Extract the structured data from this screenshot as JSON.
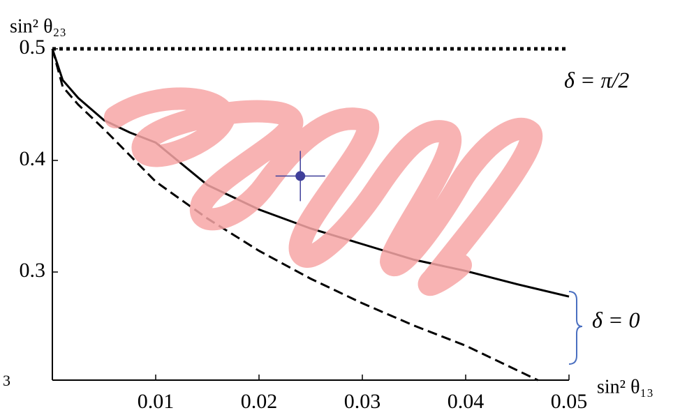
{
  "chart_data": {
    "type": "line",
    "ylabel": "sin² θ₂₃",
    "xlabel": "sin² θ₁₃",
    "xlim": [
      0,
      0.05
    ],
    "ylim": [
      0.2,
      0.5
    ],
    "xticks": [
      0.01,
      0.02,
      0.03,
      0.04,
      0.05
    ],
    "yticks": [
      0.3,
      0.4,
      0.5
    ],
    "series": [
      {
        "style": "dotted",
        "color": "#000000",
        "x": [
          0,
          0.05
        ],
        "values": [
          0.5,
          0.5
        ]
      },
      {
        "style": "solid",
        "color": "#000000",
        "x": [
          0,
          0.001,
          0.0025,
          0.005,
          0.0075,
          0.01,
          0.015,
          0.02,
          0.025,
          0.03,
          0.035,
          0.04,
          0.045,
          0.05
        ],
        "values": [
          0.5,
          0.472,
          0.456,
          0.436,
          0.425,
          0.416,
          0.378,
          0.356,
          0.339,
          0.325,
          0.311,
          0.301,
          0.289,
          0.278
        ]
      },
      {
        "style": "dashed",
        "color": "#000000",
        "x": [
          0,
          0.001,
          0.0025,
          0.005,
          0.01,
          0.015,
          0.02,
          0.025,
          0.03,
          0.035,
          0.04,
          0.047
        ],
        "values": [
          0.5,
          0.466,
          0.45,
          0.428,
          0.381,
          0.348,
          0.319,
          0.294,
          0.272,
          0.252,
          0.234,
          0.203
        ]
      }
    ],
    "points": [
      {
        "x": 0.024,
        "y": 0.386,
        "xerr": 0.0024,
        "yerr": 0.0225,
        "color": "#3f3f9a"
      }
    ],
    "annotations": [
      "δ = π/2",
      "δ = 0"
    ],
    "fragment_label": "3"
  }
}
